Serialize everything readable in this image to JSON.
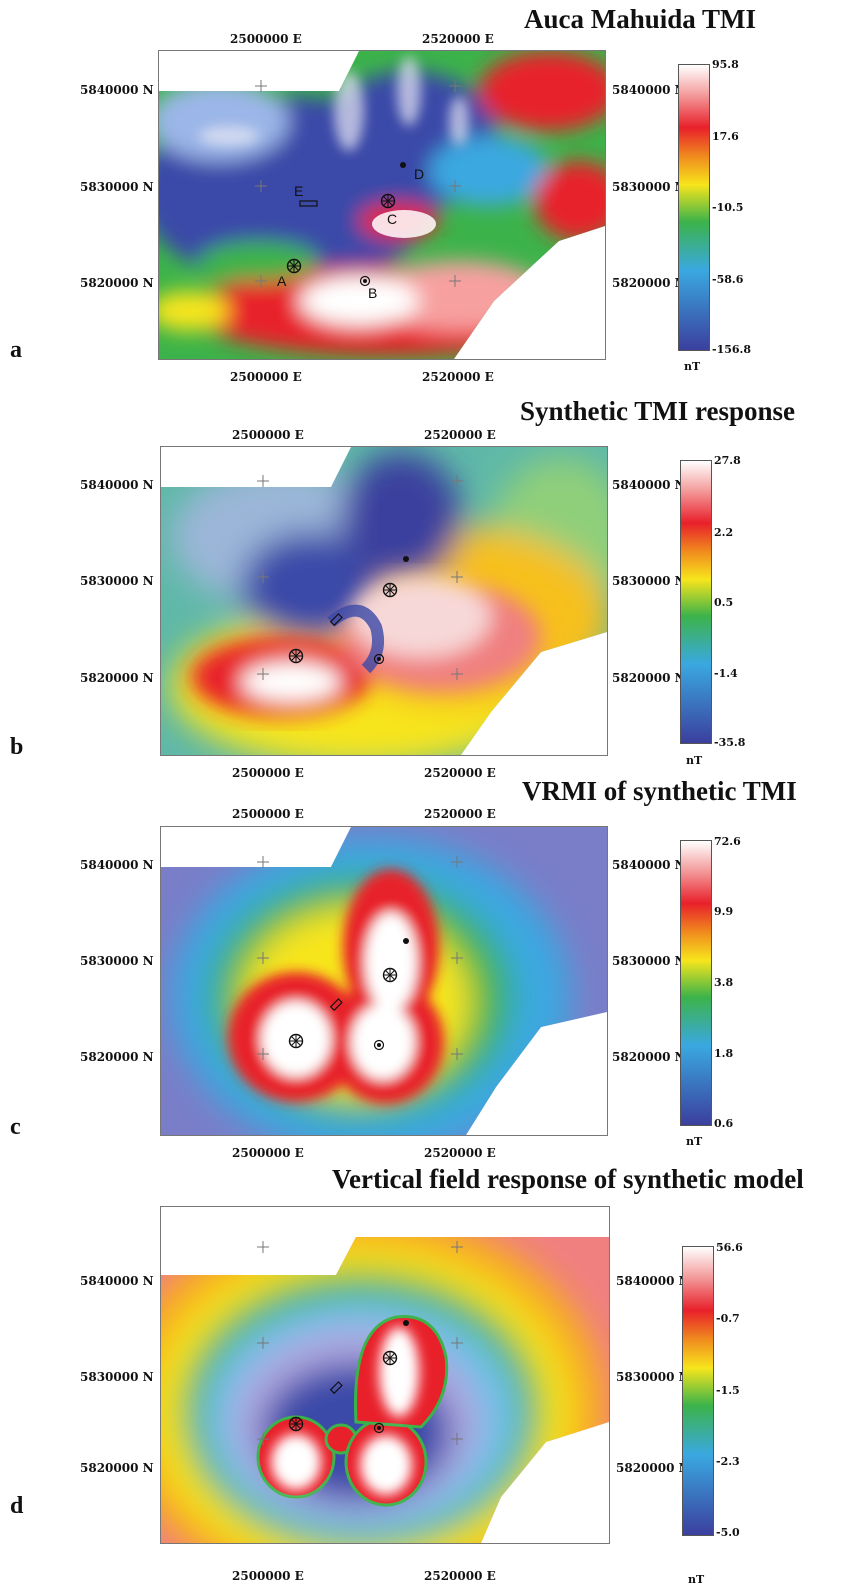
{
  "panels": [
    {
      "label": "a",
      "title": "Auca Mahuida TMI",
      "x_ticks": [
        "2500000 E",
        "2520000 E"
      ],
      "y_ticks": [
        "5840000 N",
        "5830000 N",
        "5820000 N"
      ],
      "colorbar_ticks": [
        "95.8",
        "17.6",
        "-10.5",
        "-58.6",
        "-156.8"
      ],
      "unit": "nT",
      "marker_labels": [
        "A",
        "B",
        "C",
        "D",
        "E"
      ]
    },
    {
      "label": "b",
      "title": "Synthetic TMI response",
      "x_ticks": [
        "2500000 E",
        "2520000 E"
      ],
      "y_ticks": [
        "5840000 N",
        "5830000 N",
        "5820000 N"
      ],
      "colorbar_ticks": [
        "27.8",
        "2.2",
        "0.5",
        "-1.4",
        "-35.8"
      ],
      "unit": "nT"
    },
    {
      "label": "c",
      "title": "VRMI of synthetic TMI",
      "x_ticks": [
        "2500000 E",
        "2520000 E"
      ],
      "y_ticks": [
        "5840000 N",
        "5830000 N",
        "5820000 N"
      ],
      "colorbar_ticks": [
        "72.6",
        "9.9",
        "3.8",
        "1.8",
        "0.6"
      ],
      "unit": "nT"
    },
    {
      "label": "d",
      "title": "Vertical field response of synthetic model",
      "x_ticks": [
        "2500000 E",
        "2520000 E"
      ],
      "y_ticks": [
        "5840000 N",
        "5830000 N",
        "5820000 N"
      ],
      "colorbar_ticks": [
        "56.6",
        "-0.7",
        "-1.5",
        "-2.3",
        "-5.0"
      ],
      "unit": "nT"
    }
  ],
  "colorbar_colors": [
    "#ffffff",
    "#f4a0a0",
    "#e8202a",
    "#f7e51c",
    "#3cb34a",
    "#3aa8e0",
    "#3b49a8"
  ]
}
